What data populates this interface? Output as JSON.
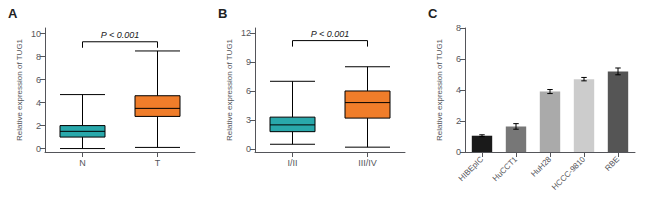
{
  "chart_data": [
    {
      "type": "boxplot",
      "title": "A",
      "ylabel": "Relative expression of TUG1",
      "categories": [
        "N",
        "T"
      ],
      "colors": [
        "#29A8AB",
        "#F07D2A"
      ],
      "boxes": [
        {
          "whislo": 0.0,
          "q1": 1.0,
          "med": 1.5,
          "q3": 2.0,
          "whishi": 4.7
        },
        {
          "whislo": 0.1,
          "q1": 2.8,
          "med": 3.5,
          "q3": 4.6,
          "whishi": 8.5
        }
      ],
      "ylim": [
        -0.3,
        10.5
      ],
      "yticks": [
        0,
        2,
        4,
        6,
        8,
        10
      ],
      "grid": false,
      "annotations": [
        {
          "text": "P < 0.001",
          "y": 9.3,
          "x1": "N",
          "x2": "T"
        }
      ]
    },
    {
      "type": "boxplot",
      "title": "B",
      "ylabel": "Relative expression of TUG1",
      "categories": [
        "I/II",
        "III/IV"
      ],
      "colors": [
        "#29A8AB",
        "#F07D2A"
      ],
      "boxes": [
        {
          "whislo": 0.5,
          "q1": 1.8,
          "med": 2.5,
          "q3": 3.3,
          "whishi": 7.0
        },
        {
          "whislo": 0.2,
          "q1": 3.2,
          "med": 4.8,
          "q3": 6.0,
          "whishi": 8.5
        }
      ],
      "ylim": [
        -0.3,
        12.5
      ],
      "yticks": [
        0,
        3,
        6,
        9,
        12
      ],
      "grid": false,
      "annotations": [
        {
          "text": "P < 0.001",
          "y": 11.2,
          "x1": "I/II",
          "x2": "III/IV"
        }
      ]
    },
    {
      "type": "bar",
      "title": "C",
      "ylabel": "Relative expression of TUG1",
      "categories": [
        "HIBEpIC",
        "HuCCT1",
        "HuH28",
        "HCCC-9810",
        "RBE"
      ],
      "values": [
        1.05,
        1.65,
        3.9,
        4.7,
        5.2
      ],
      "errors": [
        0.06,
        0.18,
        0.13,
        0.11,
        0.22
      ],
      "colors": [
        "#1a1a1a",
        "#777777",
        "#aaaaaa",
        "#cccccc",
        "#555555"
      ],
      "ylim": [
        0,
        8
      ],
      "yticks": [
        0,
        2,
        4,
        6,
        8
      ],
      "grid": false
    }
  ]
}
